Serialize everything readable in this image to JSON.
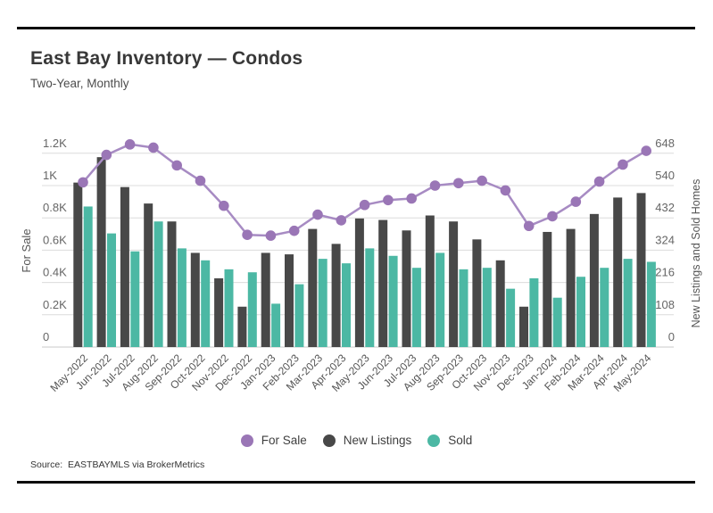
{
  "header": {
    "title": "East Bay Inventory — Condos",
    "subtitle": "Two-Year, Monthly"
  },
  "footer": {
    "source": "Source:  EASTBAYMLS via BrokerMetrics"
  },
  "legend": [
    {
      "label": "For Sale",
      "color": "#9a76b6"
    },
    {
      "label": "New Listings",
      "color": "#484848"
    },
    {
      "label": "Sold",
      "color": "#4cb8a4"
    }
  ],
  "colors": {
    "for_sale_line": "#a78bc3",
    "for_sale_point": "#9a76b6",
    "new_listings_bar": "#484848",
    "sold_bar": "#4cb8a4",
    "gridline": "#dcdcdc",
    "baseline": "#c9c9c9",
    "tick_text": "#666666",
    "axis_title_text": "#555555",
    "x_label_text": "#555555"
  },
  "chart_data": {
    "type": "composite",
    "title": "East Bay Inventory — Condos",
    "subtitle": "Two-Year, Monthly",
    "grid": true,
    "legend_position": "bottom",
    "categories": [
      "May-2022",
      "Jun-2022",
      "Jul-2022",
      "Aug-2022",
      "Sep-2022",
      "Oct-2022",
      "Nov-2022",
      "Dec-2022",
      "Jan-2023",
      "Feb-2023",
      "Mar-2023",
      "Apr-2023",
      "May-2023",
      "Jun-2023",
      "Jul-2023",
      "Aug-2023",
      "Sep-2023",
      "Oct-2023",
      "Nov-2023",
      "Dec-2023",
      "Jan-2024",
      "Feb-2024",
      "Mar-2024",
      "Apr-2024",
      "May-2024"
    ],
    "series": [
      {
        "name": "For Sale",
        "type": "line",
        "axis": "left",
        "values": [
          1020,
          1190,
          1255,
          1235,
          1125,
          1030,
          875,
          695,
          690,
          720,
          820,
          785,
          880,
          910,
          920,
          1000,
          1015,
          1030,
          970,
          750,
          810,
          900,
          1025,
          1130,
          1215
        ]
      },
      {
        "name": "New Listings",
        "type": "bar",
        "axis": "right",
        "values": [
          550,
          635,
          535,
          480,
          420,
          315,
          230,
          135,
          315,
          310,
          395,
          345,
          430,
          425,
          390,
          440,
          420,
          360,
          290,
          135,
          385,
          395,
          445,
          500,
          515
        ]
      },
      {
        "name": "Sold",
        "type": "bar",
        "axis": "right",
        "values": [
          470,
          380,
          320,
          420,
          330,
          290,
          260,
          250,
          145,
          210,
          295,
          280,
          330,
          305,
          265,
          315,
          260,
          265,
          195,
          230,
          165,
          235,
          265,
          295,
          285
        ]
      }
    ],
    "axes": {
      "left": {
        "label": "For Sale",
        "range": [
          0,
          1200
        ],
        "ticks": [
          "0",
          "0.2K",
          "0.4K",
          "0.6K",
          "0.8K",
          "1K",
          "1.2K"
        ]
      },
      "right": {
        "label": "New Listings and Sold Homes",
        "range": [
          0,
          648
        ],
        "ticks": [
          "0",
          "108",
          "216",
          "324",
          "432",
          "540",
          "648"
        ]
      }
    }
  }
}
